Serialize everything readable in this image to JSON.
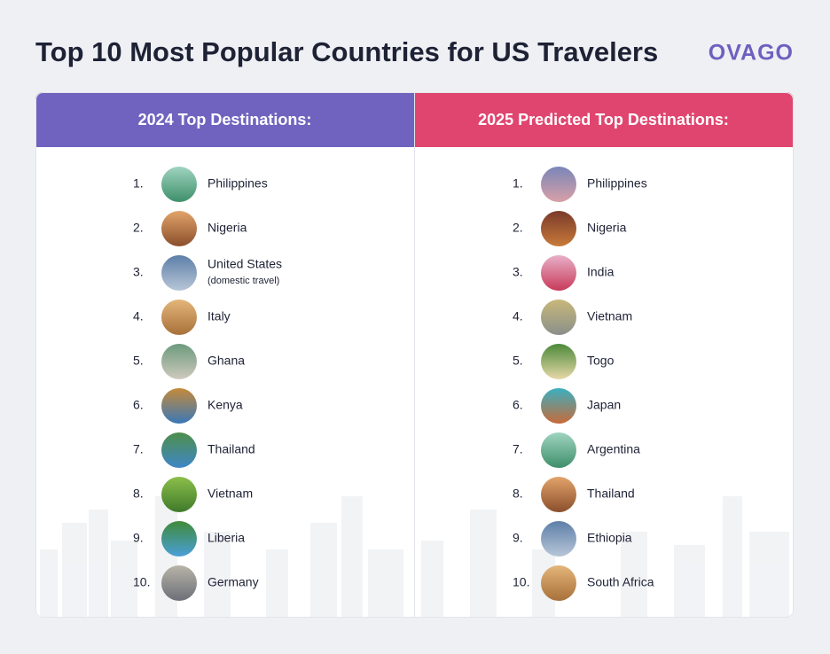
{
  "header": {
    "title": "Top 10 Most Popular Countries for US Travelers",
    "logo": "OVAGO"
  },
  "columns": [
    {
      "heading": "2024 Top Destinations:",
      "items": [
        {
          "rank": "1.",
          "name": "Philippines"
        },
        {
          "rank": "2.",
          "name": "Nigeria"
        },
        {
          "rank": "3.",
          "name": "United States",
          "note": "(domestic travel)"
        },
        {
          "rank": "4.",
          "name": "Italy"
        },
        {
          "rank": "5.",
          "name": "Ghana"
        },
        {
          "rank": "6.",
          "name": "Kenya"
        },
        {
          "rank": "7.",
          "name": "Thailand"
        },
        {
          "rank": "8.",
          "name": "Vietnam"
        },
        {
          "rank": "9.",
          "name": "Liberia"
        },
        {
          "rank": "10.",
          "name": "Germany"
        }
      ]
    },
    {
      "heading": "2025 Predicted Top Destinations:",
      "items": [
        {
          "rank": "1.",
          "name": "Philippines"
        },
        {
          "rank": "2.",
          "name": "Nigeria"
        },
        {
          "rank": "3.",
          "name": "India"
        },
        {
          "rank": "4.",
          "name": "Vietnam"
        },
        {
          "rank": "5.",
          "name": "Togo"
        },
        {
          "rank": "6.",
          "name": "Japan"
        },
        {
          "rank": "7.",
          "name": "Argentina"
        },
        {
          "rank": "8.",
          "name": "Thailand"
        },
        {
          "rank": "9.",
          "name": "Ethiopia"
        },
        {
          "rank": "10.",
          "name": "South Africa"
        }
      ]
    }
  ]
}
